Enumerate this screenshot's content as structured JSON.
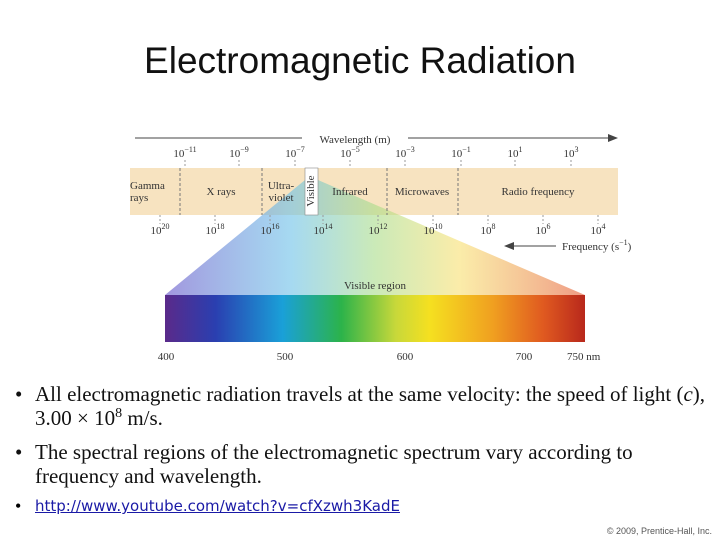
{
  "title": "Electromagnetic Radiation",
  "diagram": {
    "wavelength_label": "Wavelength (m)",
    "wavelength_ticks": [
      {
        "base": "10",
        "exp": "−11"
      },
      {
        "base": "10",
        "exp": "−9"
      },
      {
        "base": "10",
        "exp": "−7"
      },
      {
        "base": "10",
        "exp": "−5"
      },
      {
        "base": "10",
        "exp": "−3"
      },
      {
        "base": "10",
        "exp": "−1"
      },
      {
        "base": "10",
        "exp": "1"
      },
      {
        "base": "10",
        "exp": "3"
      }
    ],
    "regions": [
      {
        "lines": [
          "Gamma",
          "rays"
        ]
      },
      {
        "lines": [
          "X rays"
        ]
      },
      {
        "lines": [
          "Ultra-",
          "violet"
        ]
      },
      {
        "lines": [
          "Visible"
        ]
      },
      {
        "lines": [
          "Infrared"
        ]
      },
      {
        "lines": [
          "Microwaves"
        ]
      },
      {
        "lines": [
          "Radio frequency"
        ]
      }
    ],
    "frequency_ticks": [
      {
        "base": "10",
        "exp": "20"
      },
      {
        "base": "10",
        "exp": "18"
      },
      {
        "base": "10",
        "exp": "16"
      },
      {
        "base": "10",
        "exp": "14"
      },
      {
        "base": "10",
        "exp": "12"
      },
      {
        "base": "10",
        "exp": "10"
      },
      {
        "base": "10",
        "exp": "8"
      },
      {
        "base": "10",
        "exp": "6"
      },
      {
        "base": "10",
        "exp": "4"
      }
    ],
    "frequency_label": {
      "text": "Frequency (s",
      "exp": "−1",
      "close": ")"
    },
    "visible_label": "Visible region",
    "nm_ticks": [
      "400",
      "500",
      "600",
      "700",
      "750 nm"
    ]
  },
  "bullets": [
    {
      "parts": [
        "All electromagnetic radiation travels at the same velocity: the speed of light (",
        "c",
        "), 3.00 × 10",
        "8",
        " m/s."
      ]
    },
    {
      "parts": [
        "The spectral regions of the electromagnetic spectrum vary according to frequency and wavelength."
      ]
    }
  ],
  "link": "http://www.youtube.com/watch?v=cfXzwh3KadE",
  "footer": "© 2009, Prentice-Hall, Inc."
}
